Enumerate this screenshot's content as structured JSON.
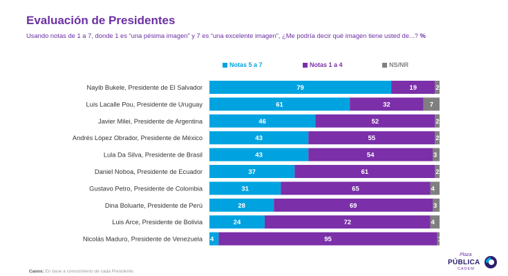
{
  "header": {
    "title": "Evaluación de Presidentes",
    "subtitle": "Usando notas de 1 a 7, donde 1 es “una pésima imagen” y 7 es “una excelente imagen”, ¿Me podría decir qué imagen tiene usted de...?",
    "subtitle_unit": "%"
  },
  "footer": {
    "label": "Casos:",
    "text": "En base a conocimiento de cada Presidente."
  },
  "logo": {
    "line1": "Plaza",
    "line2": "PÚBLICA",
    "line3": "CADEM"
  },
  "colors": {
    "series1": "#00A3E0",
    "series2": "#7B2FA8",
    "series3": "#7F7F7F",
    "title": "#6B2FA3"
  },
  "chart_data": {
    "type": "bar",
    "orientation": "horizontal",
    "stacked": true,
    "title": "Evaluación de Presidentes",
    "xlim": [
      0,
      100
    ],
    "legend": "top",
    "grid": false,
    "categories": [
      "Nayib Bukele, Presidente de El Salvador",
      "Luis Lacalle Pou, Presidente de Uruguay",
      "Javier Milei, Presidente de Argentina",
      "Andrés López Obrador, Presidente de México",
      "Lula Da Silva, Presidente de Brasil",
      "Daniel Noboa, Presidente de Ecuador",
      "Gustavo Petro, Presidente de Colombia",
      "Dina Boluarte, Presidente de Perú",
      "Luis Arce, Presidente de Bolivia",
      "Nicolás Maduro, Presidente de Venezuela"
    ],
    "series": [
      {
        "name": "Notas 5 a 7",
        "values": [
          79,
          61,
          46,
          43,
          43,
          37,
          31,
          28,
          24,
          4
        ]
      },
      {
        "name": "Notas 1 a 4",
        "values": [
          19,
          32,
          52,
          55,
          54,
          61,
          65,
          69,
          72,
          95
        ]
      },
      {
        "name": "NS/NR",
        "values": [
          2,
          7,
          2,
          2,
          3,
          2,
          4,
          3,
          4,
          1
        ]
      }
    ]
  }
}
